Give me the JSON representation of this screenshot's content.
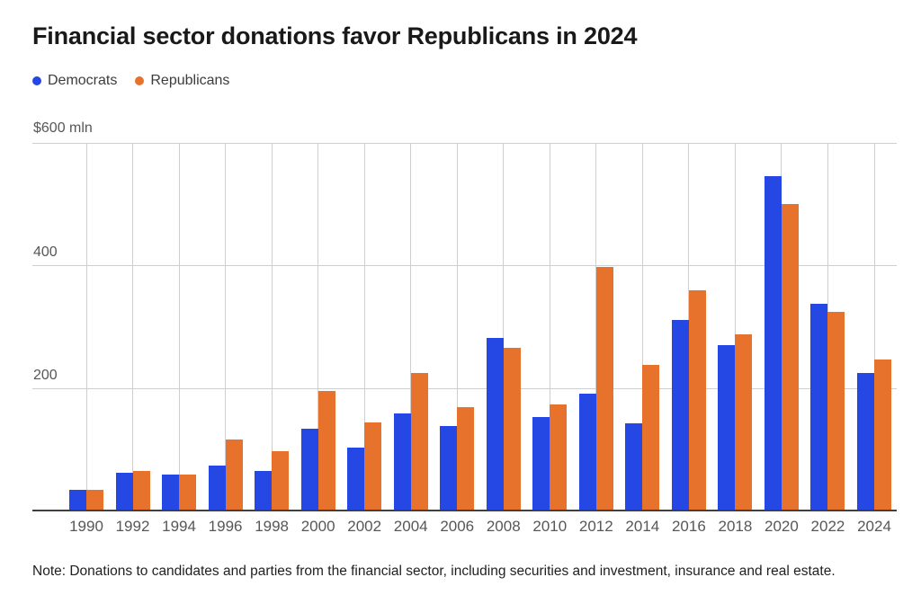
{
  "title": "Financial sector donations favor Republicans in 2024",
  "legend": {
    "items": [
      {
        "label": "Democrats",
        "color": "#2548E4"
      },
      {
        "label": "Republicans",
        "color": "#E7722C"
      }
    ]
  },
  "y_axis": {
    "top_label": "$600 mln"
  },
  "note": "Note: Donations to candidates and parties from the financial sector, including securities and investment, insurance and real estate.",
  "colors": {
    "democrats": "#2548E4",
    "republicans": "#E7722C",
    "grid": "#CFCFCF",
    "baseline": "#3F3F3F",
    "axis_text": "#575757",
    "title_text": "#191919"
  },
  "chart_data": {
    "type": "bar",
    "title": "Financial sector donations favor Republicans in 2024",
    "unit": "$ mln",
    "categories": [
      "1990",
      "1992",
      "1994",
      "1996",
      "1998",
      "2000",
      "2002",
      "2004",
      "2006",
      "2008",
      "2010",
      "2012",
      "2014",
      "2016",
      "2018",
      "2020",
      "2022",
      "2024"
    ],
    "series": [
      {
        "name": "Democrats",
        "color": "#2548E4",
        "values": [
          34,
          62,
          58,
          74,
          65,
          134,
          103,
          158,
          138,
          281,
          153,
          191,
          143,
          311,
          270,
          545,
          337,
          224
        ]
      },
      {
        "name": "Republicans",
        "color": "#E7722C",
        "values": [
          34,
          65,
          58,
          116,
          97,
          195,
          144,
          225,
          169,
          265,
          173,
          398,
          237,
          360,
          287,
          500,
          324,
          246
        ]
      }
    ],
    "ylim": [
      0,
      600
    ],
    "yticks": [
      600,
      400,
      200
    ],
    "ytick_labels": [
      "$600 mln",
      "400",
      "200"
    ],
    "grid": true,
    "legend_position": "top-left"
  }
}
